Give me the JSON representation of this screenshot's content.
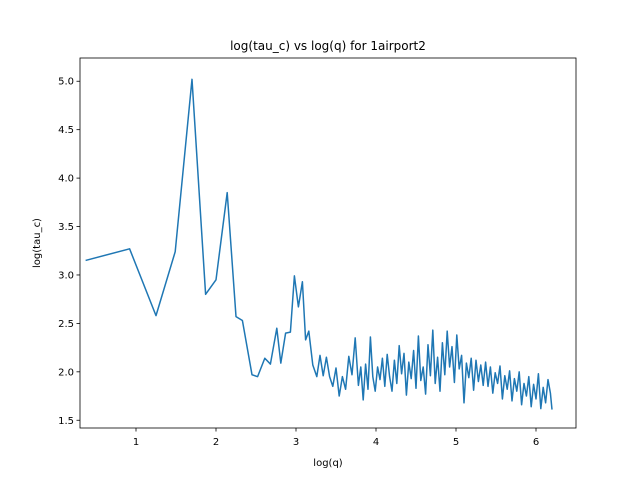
{
  "chart_data": {
    "type": "line",
    "title": "log(tau_c) vs log(q) for 1airport2",
    "xlabel": "log(q)",
    "ylabel": "log(tau_c)",
    "xlim": [
      0.3,
      6.5
    ],
    "ylim": [
      1.42,
      5.24
    ],
    "xticks": [
      1,
      2,
      3,
      4,
      5,
      6
    ],
    "yticks": [
      1.5,
      2.0,
      2.5,
      3.0,
      3.5,
      4.0,
      4.5,
      5.0
    ],
    "xtick_labels": [
      "1",
      "2",
      "3",
      "4",
      "5",
      "6"
    ],
    "ytick_labels": [
      "1.5",
      "2.0",
      "2.5",
      "3.0",
      "3.5",
      "4.0",
      "4.5",
      "5.0"
    ],
    "grid": false,
    "line_color": "#1f77b4",
    "series": [
      {
        "name": "",
        "x": [
          0.37,
          0.92,
          1.25,
          1.49,
          1.7,
          1.87,
          2.0,
          2.14,
          2.25,
          2.33,
          2.45,
          2.52,
          2.61,
          2.68,
          2.76,
          2.81,
          2.87,
          2.93,
          2.98,
          3.03,
          3.08,
          3.12,
          3.16,
          3.21,
          3.26,
          3.3,
          3.34,
          3.38,
          3.42,
          3.46,
          3.5,
          3.54,
          3.58,
          3.62,
          3.66,
          3.7,
          3.74,
          3.78,
          3.81,
          3.84,
          3.87,
          3.9,
          3.93,
          3.96,
          3.99,
          4.02,
          4.05,
          4.08,
          4.11,
          4.14,
          4.17,
          4.2,
          4.23,
          4.26,
          4.29,
          4.32,
          4.35,
          4.38,
          4.41,
          4.44,
          4.47,
          4.5,
          4.53,
          4.56,
          4.59,
          4.62,
          4.65,
          4.68,
          4.71,
          4.74,
          4.77,
          4.8,
          4.83,
          4.86,
          4.89,
          4.92,
          4.95,
          4.98,
          5.01,
          5.04,
          5.07,
          5.1,
          5.13,
          5.16,
          5.19,
          5.22,
          5.25,
          5.28,
          5.31,
          5.34,
          5.37,
          5.4,
          5.43,
          5.46,
          5.49,
          5.52,
          5.55,
          5.58,
          5.61,
          5.64,
          5.67,
          5.7,
          5.73,
          5.76,
          5.79,
          5.82,
          5.85,
          5.88,
          5.91,
          5.94,
          5.97,
          6.0,
          6.03,
          6.06,
          6.09,
          6.12,
          6.15,
          6.18,
          6.2
        ],
        "y": [
          3.15,
          3.27,
          2.58,
          3.24,
          5.02,
          2.8,
          2.95,
          3.85,
          2.57,
          2.53,
          1.97,
          1.95,
          2.14,
          2.08,
          2.45,
          2.09,
          2.4,
          2.41,
          2.99,
          2.67,
          2.93,
          2.33,
          2.42,
          2.07,
          1.95,
          2.17,
          1.96,
          2.15,
          1.95,
          1.85,
          2.04,
          1.75,
          1.95,
          1.82,
          2.16,
          1.97,
          2.35,
          1.86,
          2.05,
          1.71,
          2.08,
          1.82,
          2.36,
          1.95,
          1.8,
          2.05,
          1.92,
          2.14,
          1.85,
          2.18,
          1.95,
          1.8,
          2.12,
          1.88,
          2.27,
          1.98,
          2.19,
          1.76,
          2.1,
          1.93,
          2.22,
          1.83,
          2.37,
          1.91,
          2.05,
          1.77,
          2.28,
          1.96,
          2.43,
          1.88,
          2.15,
          1.8,
          2.3,
          1.97,
          2.42,
          2.05,
          2.26,
          1.89,
          2.38,
          2.03,
          2.17,
          1.68,
          2.09,
          1.94,
          2.14,
          1.81,
          2.12,
          1.9,
          2.07,
          1.86,
          2.1,
          1.85,
          2.05,
          1.78,
          1.99,
          1.88,
          2.06,
          1.72,
          1.96,
          1.82,
          2.01,
          1.7,
          1.93,
          1.8,
          2.0,
          1.66,
          1.88,
          1.75,
          1.95,
          1.64,
          1.87,
          1.72,
          1.98,
          1.62,
          1.84,
          1.68,
          1.92,
          1.78,
          1.61
        ]
      }
    ]
  }
}
